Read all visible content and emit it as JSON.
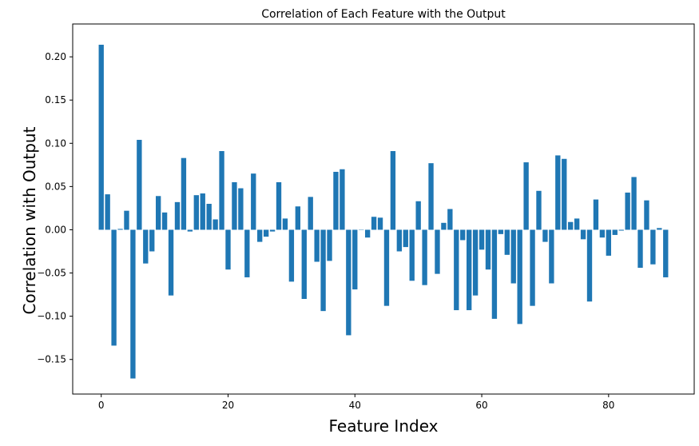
{
  "chart_data": {
    "type": "bar",
    "title": "Correlation of Each Feature with the Output",
    "xlabel": "Feature Index",
    "ylabel": "Correlation with Output",
    "bar_color": "#1f77b4",
    "xlim": [
      -4.5,
      93.5
    ],
    "ylim": [
      -0.19,
      0.238
    ],
    "xticks": [
      0,
      20,
      40,
      60,
      80
    ],
    "xtick_labels": [
      "0",
      "20",
      "40",
      "60",
      "80"
    ],
    "yticks": [
      -0.15,
      -0.1,
      -0.05,
      0.0,
      0.05,
      0.1,
      0.15,
      0.2
    ],
    "ytick_labels": [
      "−0.15",
      "−0.10",
      "−0.05",
      "0.00",
      "0.05",
      "0.10",
      "0.15",
      "0.20"
    ],
    "grid": false,
    "x": [
      0,
      1,
      2,
      3,
      4,
      5,
      6,
      7,
      8,
      9,
      10,
      11,
      12,
      13,
      14,
      15,
      16,
      17,
      18,
      19,
      20,
      21,
      22,
      23,
      24,
      25,
      26,
      27,
      28,
      29,
      30,
      31,
      32,
      33,
      34,
      35,
      36,
      37,
      38,
      39,
      40,
      41,
      42,
      43,
      44,
      45,
      46,
      47,
      48,
      49,
      50,
      51,
      52,
      53,
      54,
      55,
      56,
      57,
      58,
      59,
      60,
      61,
      62,
      63,
      64,
      65,
      66,
      67,
      68,
      69,
      70,
      71,
      72,
      73,
      74,
      75,
      76,
      77,
      78,
      79,
      80,
      81,
      82,
      83,
      84,
      85,
      86,
      87,
      88,
      89
    ],
    "values": [
      0.214,
      0.041,
      -0.134,
      0.001,
      0.022,
      -0.172,
      0.104,
      -0.039,
      -0.025,
      0.039,
      0.02,
      -0.076,
      0.032,
      0.083,
      -0.002,
      0.04,
      0.042,
      0.03,
      0.012,
      0.091,
      -0.046,
      0.055,
      0.048,
      -0.055,
      0.065,
      -0.014,
      -0.008,
      -0.002,
      0.055,
      0.013,
      -0.06,
      0.027,
      -0.08,
      0.038,
      -0.037,
      -0.094,
      -0.036,
      0.067,
      0.07,
      -0.122,
      -0.069,
      0.0,
      -0.009,
      0.015,
      0.014,
      -0.088,
      0.091,
      -0.025,
      -0.02,
      -0.059,
      0.033,
      -0.064,
      0.077,
      -0.051,
      0.008,
      0.024,
      -0.093,
      -0.012,
      -0.093,
      -0.076,
      -0.023,
      -0.046,
      -0.103,
      -0.005,
      -0.029,
      -0.062,
      -0.109,
      0.078,
      -0.088,
      0.045,
      -0.014,
      -0.062,
      0.086,
      0.082,
      0.009,
      0.013,
      -0.011,
      -0.083,
      0.035,
      -0.009,
      -0.03,
      -0.006,
      -0.001,
      0.043,
      0.061,
      -0.044,
      0.034,
      -0.04,
      0.002,
      -0.055
    ]
  }
}
